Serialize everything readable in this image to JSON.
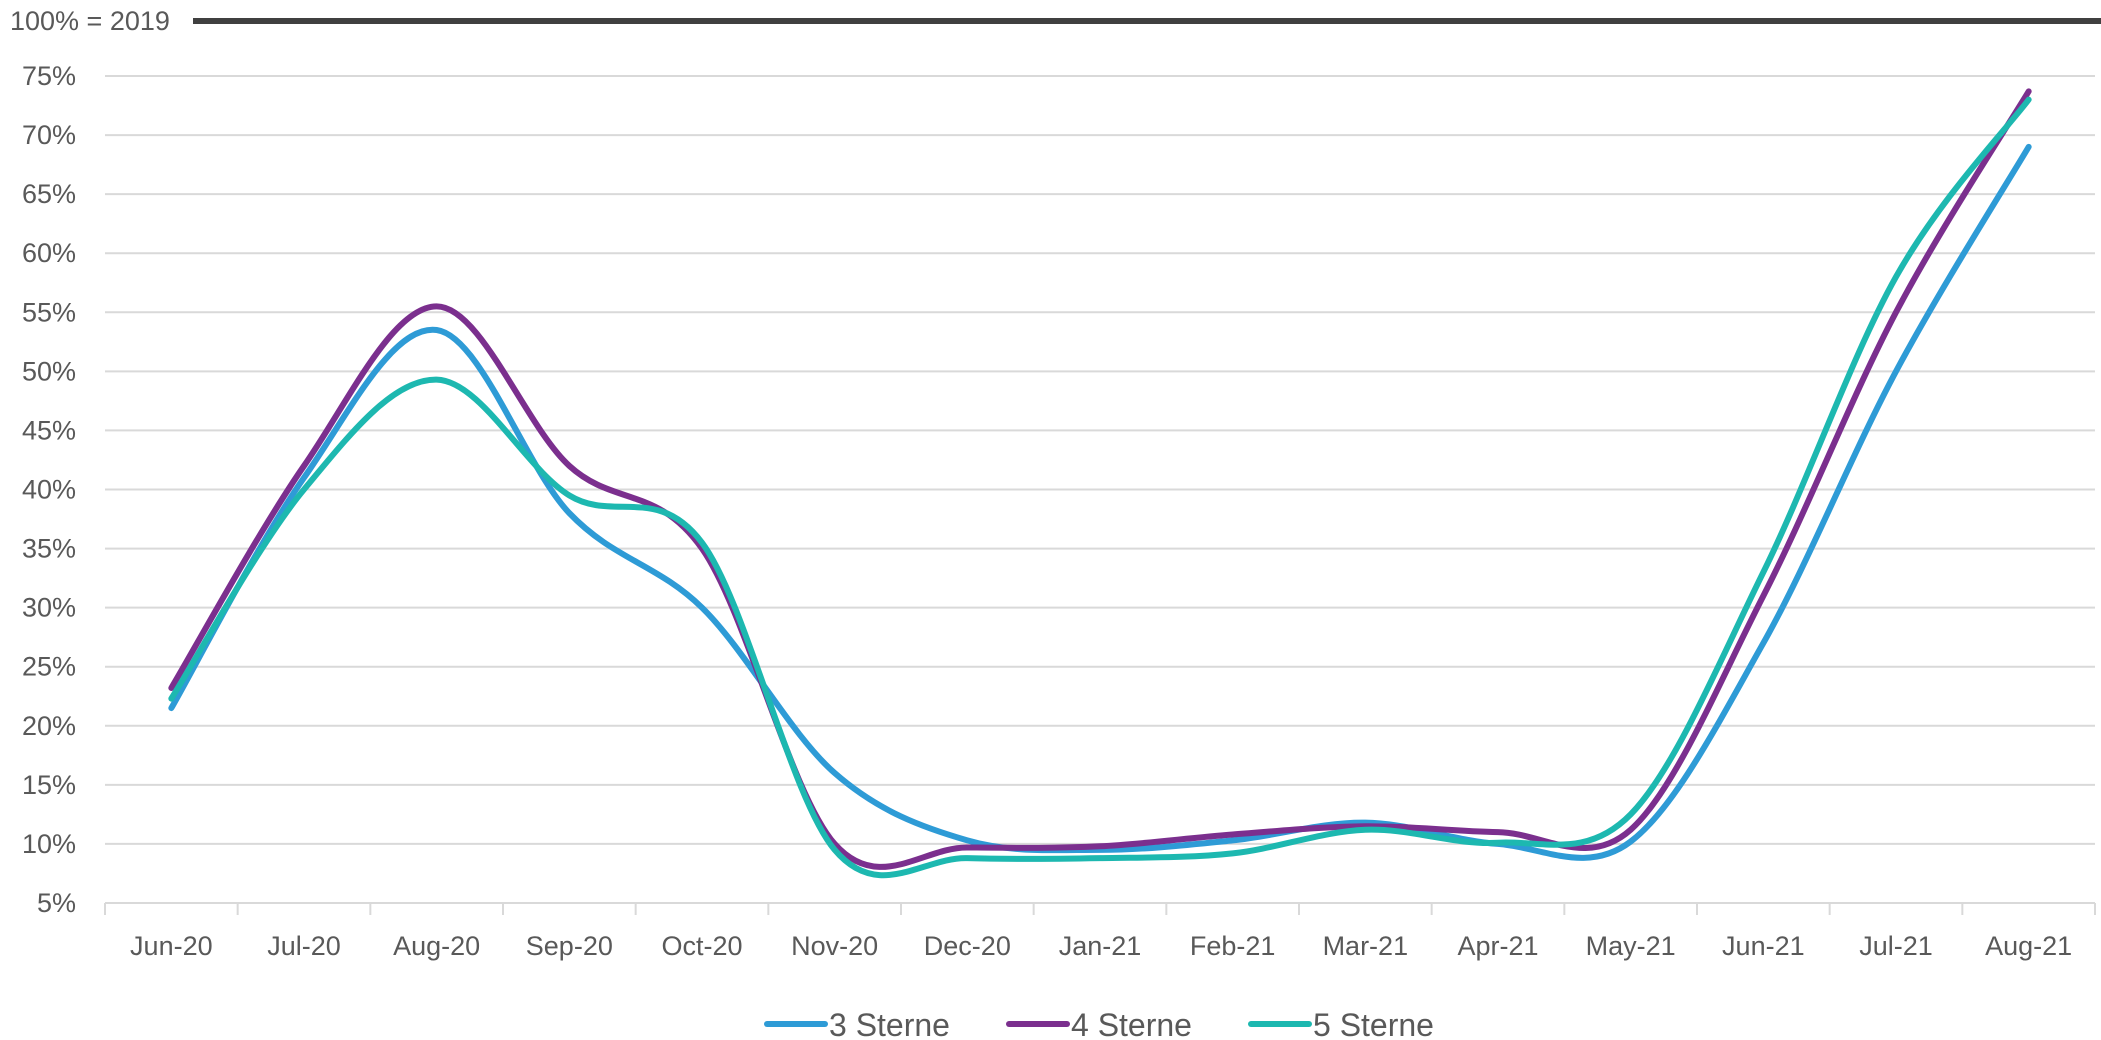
{
  "chart_data": {
    "type": "line",
    "title": "",
    "xlabel": "",
    "ylabel": "",
    "categories": [
      "Jun-20",
      "Jul-20",
      "Aug-20",
      "Sep-20",
      "Oct-20",
      "Nov-20",
      "Dec-20",
      "Jan-21",
      "Feb-21",
      "Mar-21",
      "Apr-21",
      "May-21",
      "Jun-21",
      "Jul-21",
      "Aug-21"
    ],
    "ylim": [
      5,
      75
    ],
    "ytick_step": 5,
    "ytick_suffix": "%",
    "y_ticks": [
      "5%",
      "10%",
      "15%",
      "20%",
      "25%",
      "30%",
      "35%",
      "40%",
      "45%",
      "50%",
      "55%",
      "60%",
      "65%",
      "70%",
      "75%"
    ],
    "grid": true,
    "smooth": true,
    "legend_position": "bottom",
    "reference_line": {
      "label": "100% = 2019",
      "value": 100,
      "color": "#404040"
    },
    "series": [
      {
        "name": "3 Sterne",
        "color": "#2E9BD6",
        "values": [
          21.5,
          41,
          53.5,
          38,
          30,
          16,
          10.3,
          9.5,
          10.3,
          11.8,
          10.0,
          10.2,
          27,
          50,
          69
        ]
      },
      {
        "name": "4 Sterne",
        "color": "#7B2F8E",
        "values": [
          23.2,
          42,
          55.5,
          42,
          35,
          10,
          9.7,
          9.8,
          10.8,
          11.5,
          11.0,
          11.2,
          31,
          55,
          73.7
        ]
      },
      {
        "name": "5 Sterne",
        "color": "#1DB8B0",
        "values": [
          22.3,
          40,
          49.3,
          39.5,
          35.5,
          9.5,
          8.8,
          8.8,
          9.2,
          11.2,
          10.1,
          12.5,
          33,
          58,
          73.0
        ]
      }
    ]
  }
}
